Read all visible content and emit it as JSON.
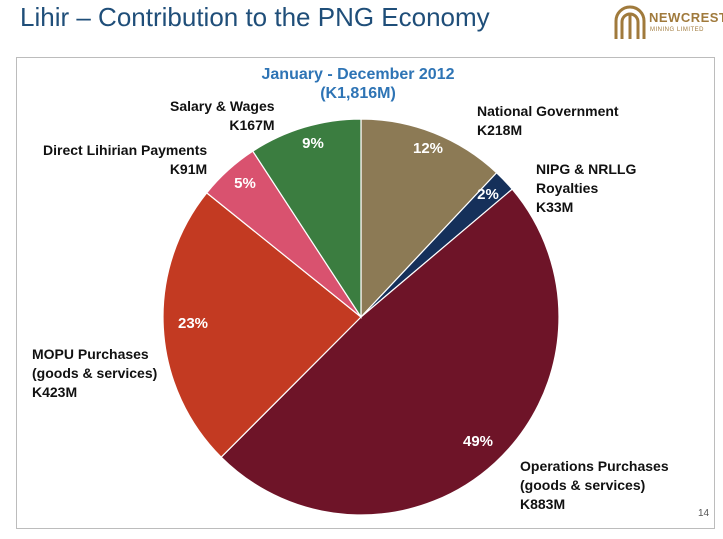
{
  "slide": {
    "title": "Lihir – Contribution to the PNG Economy",
    "page_number": "14"
  },
  "logo": {
    "name": "NEWCREST",
    "subtitle": "MINING LIMITED",
    "color": "#a07a3c"
  },
  "chart_data": {
    "type": "pie",
    "title": "January - December 2012",
    "subtitle": "(K1,816M)",
    "slices": [
      {
        "key": "natgov",
        "name_lines": [
          "National Government"
        ],
        "value_label": "K218M",
        "value": 218,
        "percent": 12,
        "percent_label": "12%",
        "color": "#8c7a55"
      },
      {
        "key": "nipg",
        "name_lines": [
          "NIPG & NRLLG",
          "Royalties"
        ],
        "value_label": "K33M",
        "value": 33,
        "percent": 2,
        "percent_label": "2%",
        "color": "#15305a"
      },
      {
        "key": "ops",
        "name_lines": [
          "Operations Purchases",
          "(goods & services)"
        ],
        "value_label": "K883M",
        "value": 883,
        "percent": 49,
        "percent_label": "49%",
        "color": "#6e1428"
      },
      {
        "key": "mopu",
        "name_lines": [
          "MOPU Purchases",
          "(goods & services)"
        ],
        "value_label": "K423M",
        "value": 423,
        "percent": 23,
        "percent_label": "23%",
        "color": "#c33a22"
      },
      {
        "key": "lihirian",
        "name_lines": [
          "Direct Lihirian Payments"
        ],
        "value_label": "K91M",
        "value": 91,
        "percent": 5,
        "percent_label": "5%",
        "color": "#d9526f"
      },
      {
        "key": "salary",
        "name_lines": [
          "Salary & Wages"
        ],
        "value_label": "K167M",
        "value": 167,
        "percent": 9,
        "percent_label": "9%",
        "color": "#3b7d40"
      }
    ]
  }
}
